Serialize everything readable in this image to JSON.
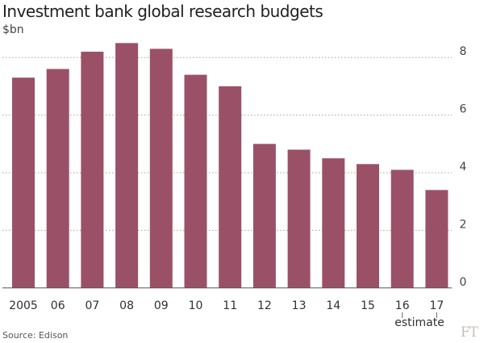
{
  "chart_data": {
    "type": "bar",
    "title": "Investment bank global research budgets",
    "ylabel": "$bn",
    "xlabel": "",
    "categories": [
      "2005",
      "06",
      "07",
      "08",
      "09",
      "10",
      "11",
      "12",
      "13",
      "14",
      "15",
      "16",
      "17"
    ],
    "values": [
      7.3,
      7.6,
      8.2,
      8.5,
      8.3,
      7.4,
      7.0,
      5.0,
      4.8,
      4.5,
      4.3,
      4.1,
      3.4
    ],
    "ylim": [
      0,
      8.6
    ],
    "yticks": [
      0,
      2,
      4,
      6,
      8
    ],
    "grid": true,
    "annotation": {
      "category": "16",
      "text": "estimate"
    },
    "bar_color": "#9a5168",
    "source": "Source: Edison",
    "logo": "FT"
  }
}
